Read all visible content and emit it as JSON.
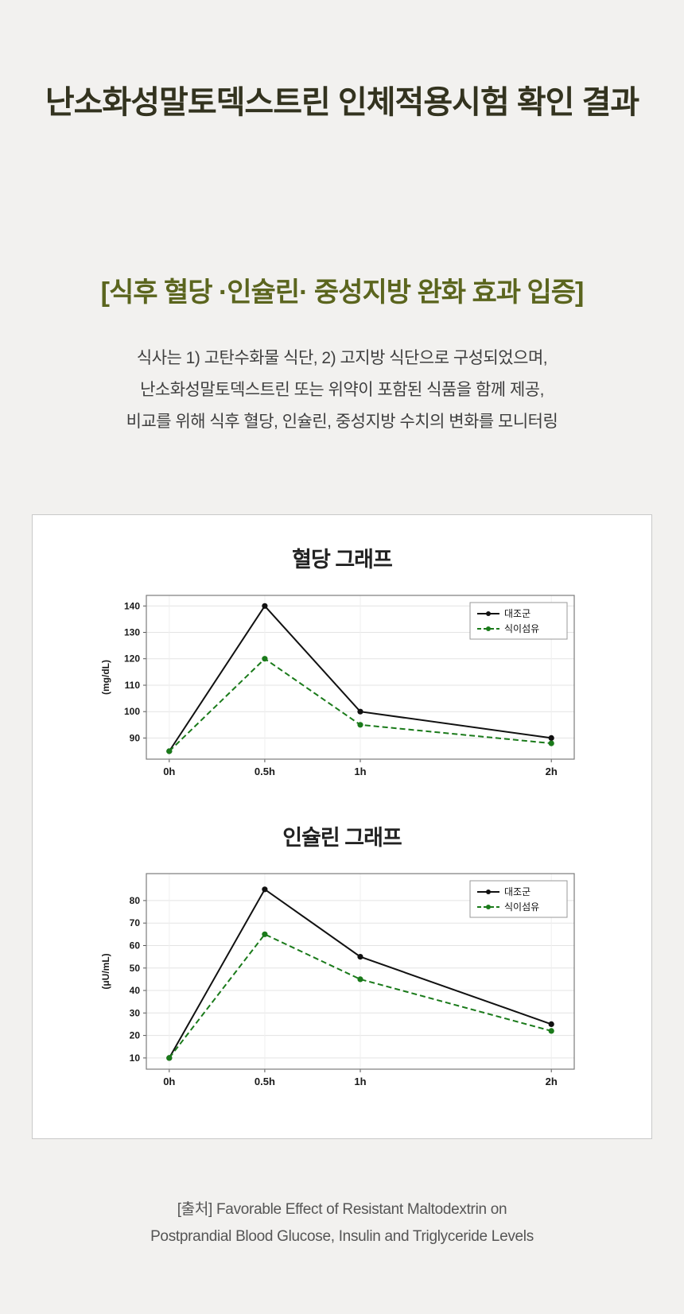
{
  "header": {
    "title": "난소화성말토덱스트린 인체적용시험 확인 결과",
    "subtitle": "[식후 혈당 ·인슐린· 중성지방 완화 효과 입증]",
    "body_lines": [
      "식사는 1)  고탄수화물 식단,  2) 고지방 식단으로 구성되었으며,",
      "난소화성말토덱스트린 또는 위약이 포함된 식품을 함께 제공,",
      "비교를 위해 식후 혈당, 인슐린, 중성지방 수치의 변화를 모니터링"
    ]
  },
  "footer": {
    "source_lines": [
      "[출처] Favorable Effect of Resistant Maltodextrin on",
      "Postprandial Blood Glucose, Insulin and Triglyceride Levels"
    ]
  },
  "colors": {
    "background": "#f2f1ef",
    "accent_olive": "#5b651e",
    "control_series": "#111111",
    "fiber_series": "#1a7a1a",
    "card_border": "#c9c9c9"
  },
  "chart_data": [
    {
      "type": "line",
      "title": "혈당 그래프",
      "xlabel": "",
      "ylabel": "(mg/dL)",
      "x": [
        "0h",
        "0.5h",
        "1h",
        "2h"
      ],
      "x_numeric": [
        0,
        0.5,
        1,
        2
      ],
      "xlim": [
        -0.12,
        2.12
      ],
      "ylim": [
        82,
        144
      ],
      "yticks": [
        90,
        100,
        110,
        120,
        130,
        140
      ],
      "grid": true,
      "legend_position": "top-right",
      "series": [
        {
          "name": "대조군",
          "color": "#111111",
          "style": "solid",
          "values": [
            85,
            140,
            100,
            90
          ]
        },
        {
          "name": "식이섬유",
          "color": "#1a7a1a",
          "style": "dashed",
          "values": [
            85,
            120,
            95,
            88
          ]
        }
      ]
    },
    {
      "type": "line",
      "title": "인슐린 그래프",
      "xlabel": "",
      "ylabel": "(μU/mL)",
      "x": [
        "0h",
        "0.5h",
        "1h",
        "2h"
      ],
      "x_numeric": [
        0,
        0.5,
        1,
        2
      ],
      "xlim": [
        -0.12,
        2.12
      ],
      "ylim": [
        5,
        92
      ],
      "yticks": [
        10,
        20,
        30,
        40,
        50,
        60,
        70,
        80
      ],
      "grid": true,
      "legend_position": "top-right",
      "series": [
        {
          "name": "대조군",
          "color": "#111111",
          "style": "solid",
          "values": [
            10,
            85,
            55,
            25
          ]
        },
        {
          "name": "식이섬유",
          "color": "#1a7a1a",
          "style": "dashed",
          "values": [
            10,
            65,
            45,
            22
          ]
        }
      ]
    }
  ]
}
